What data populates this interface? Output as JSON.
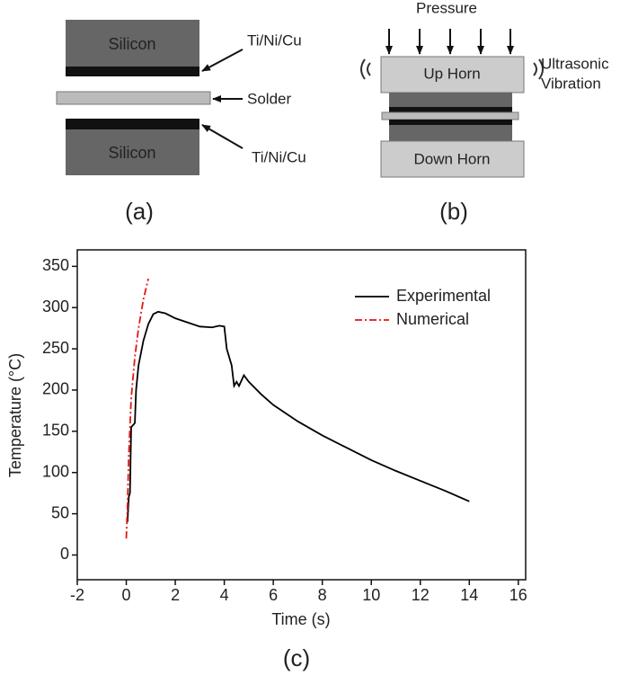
{
  "diagram_a": {
    "layers": [
      "Silicon",
      "Silicon"
    ],
    "labels": [
      "Ti/Ni/Cu",
      "Solder",
      "Ti/Ni/Cu"
    ],
    "caption": "(a)"
  },
  "diagram_b": {
    "force": "Pressure",
    "up_horn": "Up Horn",
    "down_horn": "Down Horn",
    "vibration": [
      "Ultrasonic",
      "Vibration"
    ],
    "caption": "(b)"
  },
  "chart_data": {
    "type": "line",
    "caption": "(c)",
    "xlabel": "Time (s)",
    "ylabel": "Temperature (°C)",
    "xlim": [
      -2,
      16.3
    ],
    "ylim": [
      -30,
      370
    ],
    "xticks": [
      -2,
      0,
      2,
      4,
      6,
      8,
      10,
      12,
      14,
      16
    ],
    "yticks": [
      0,
      50,
      100,
      150,
      200,
      250,
      300,
      350
    ],
    "legend": "upper right",
    "series": [
      {
        "name": "Experimental",
        "color": "#000000",
        "linestyle": "solid",
        "x": [
          0.05,
          0.1,
          0.15,
          0.2,
          0.35,
          0.4,
          0.5,
          0.7,
          0.9,
          1.1,
          1.3,
          1.6,
          2,
          2.5,
          3,
          3.5,
          3.8,
          4,
          4.1,
          4.3,
          4.4,
          4.5,
          4.6,
          4.8,
          5,
          5.5,
          6,
          7,
          8,
          9,
          10,
          11,
          12,
          13,
          14
        ],
        "values": [
          40,
          70,
          75,
          155,
          160,
          200,
          230,
          260,
          280,
          292,
          295,
          293,
          287,
          282,
          277,
          276,
          278,
          277,
          250,
          230,
          205,
          210,
          205,
          218,
          210,
          195,
          182,
          162,
          145,
          130,
          115,
          102,
          90,
          78,
          65
        ]
      },
      {
        "name": "Numerical",
        "color": "#e8150e",
        "linestyle": "dashdot",
        "x": [
          0,
          0.05,
          0.1,
          0.2,
          0.35,
          0.5,
          0.7,
          0.9
        ],
        "values": [
          20,
          60,
          120,
          190,
          240,
          275,
          310,
          335
        ]
      }
    ]
  }
}
